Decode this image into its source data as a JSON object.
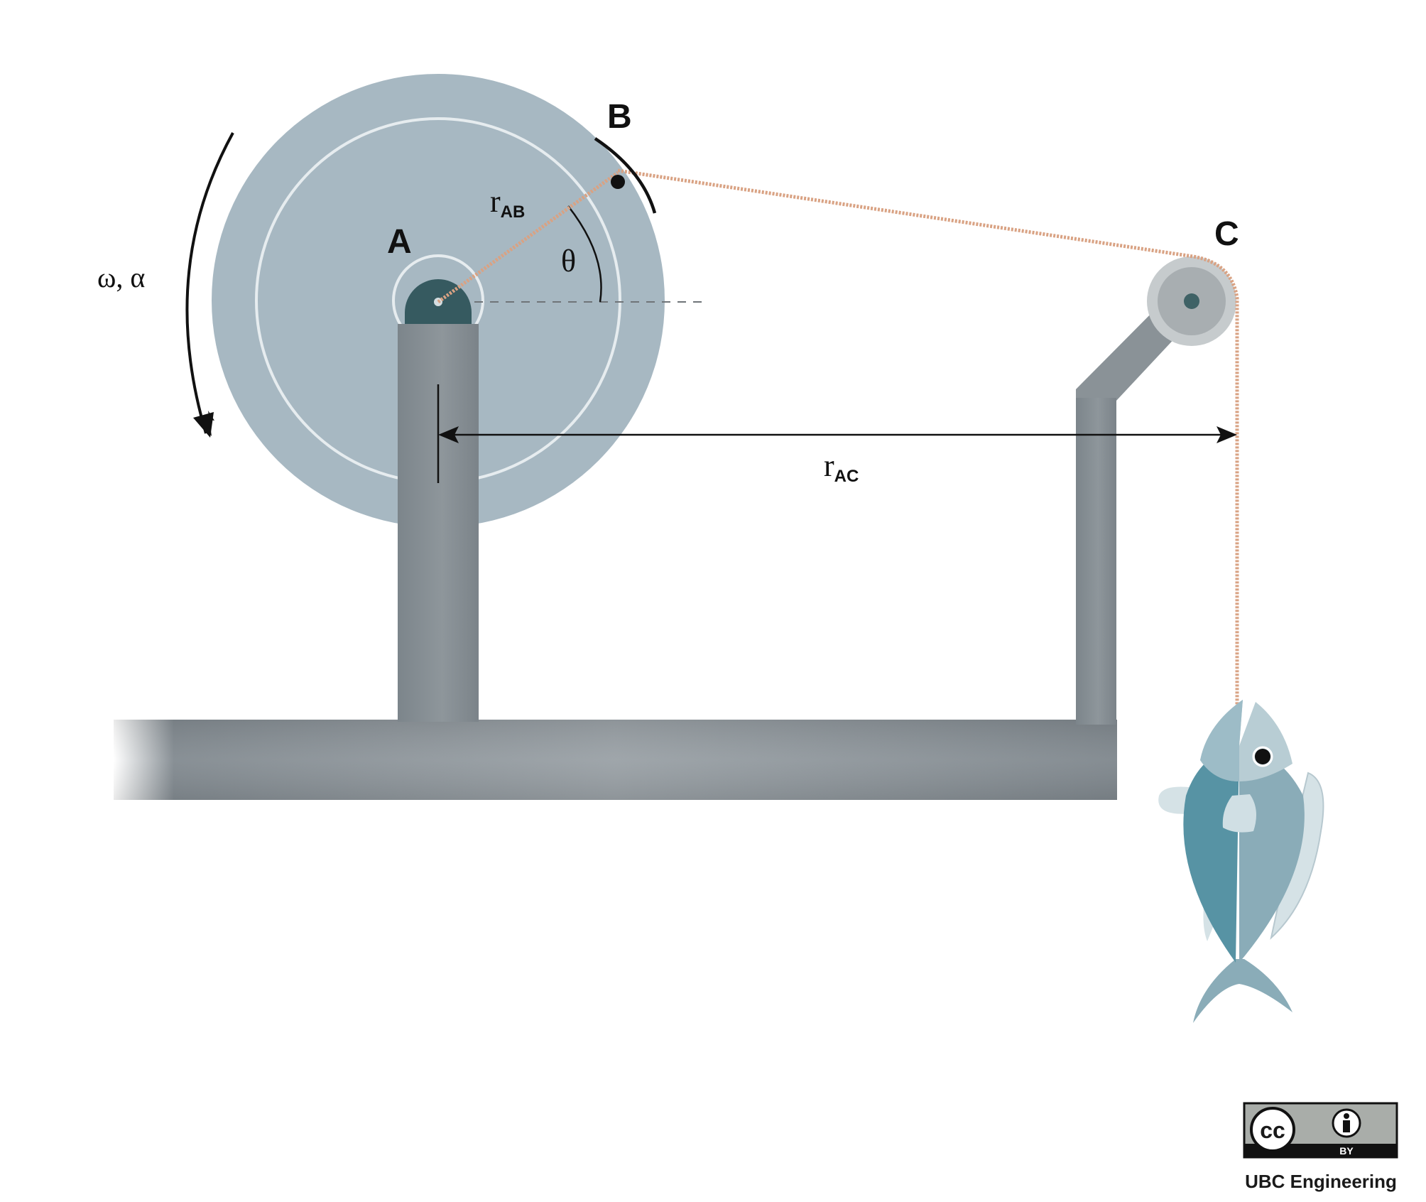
{
  "labels": {
    "point_a": "A",
    "point_b": "B",
    "point_c": "C",
    "theta": "θ",
    "r_ab_base": "r",
    "r_ab_sub": "AB",
    "r_ac_base": "r",
    "r_ac_sub": "AC",
    "omega_alpha": "ω, α"
  },
  "license": {
    "cc_mark": "cc",
    "by_text": "BY",
    "credit": "UBC Engineering"
  },
  "colors": {
    "disk": "#a7b8c2",
    "disk_ring": "#e6ecef",
    "hub": "#365a60",
    "steel": "#858d93",
    "steel_light": "#9aa1a6",
    "rope": "#d9a283",
    "pulley_outer": "#c6cbcd",
    "pulley_inner": "#a8aeb1",
    "pulley_axle": "#3f6266",
    "fish_dark": "#5793a4",
    "fish_light": "#8aacb8",
    "fish_head": "#b8cdd4",
    "fish_fin": "#d5e2e6"
  }
}
